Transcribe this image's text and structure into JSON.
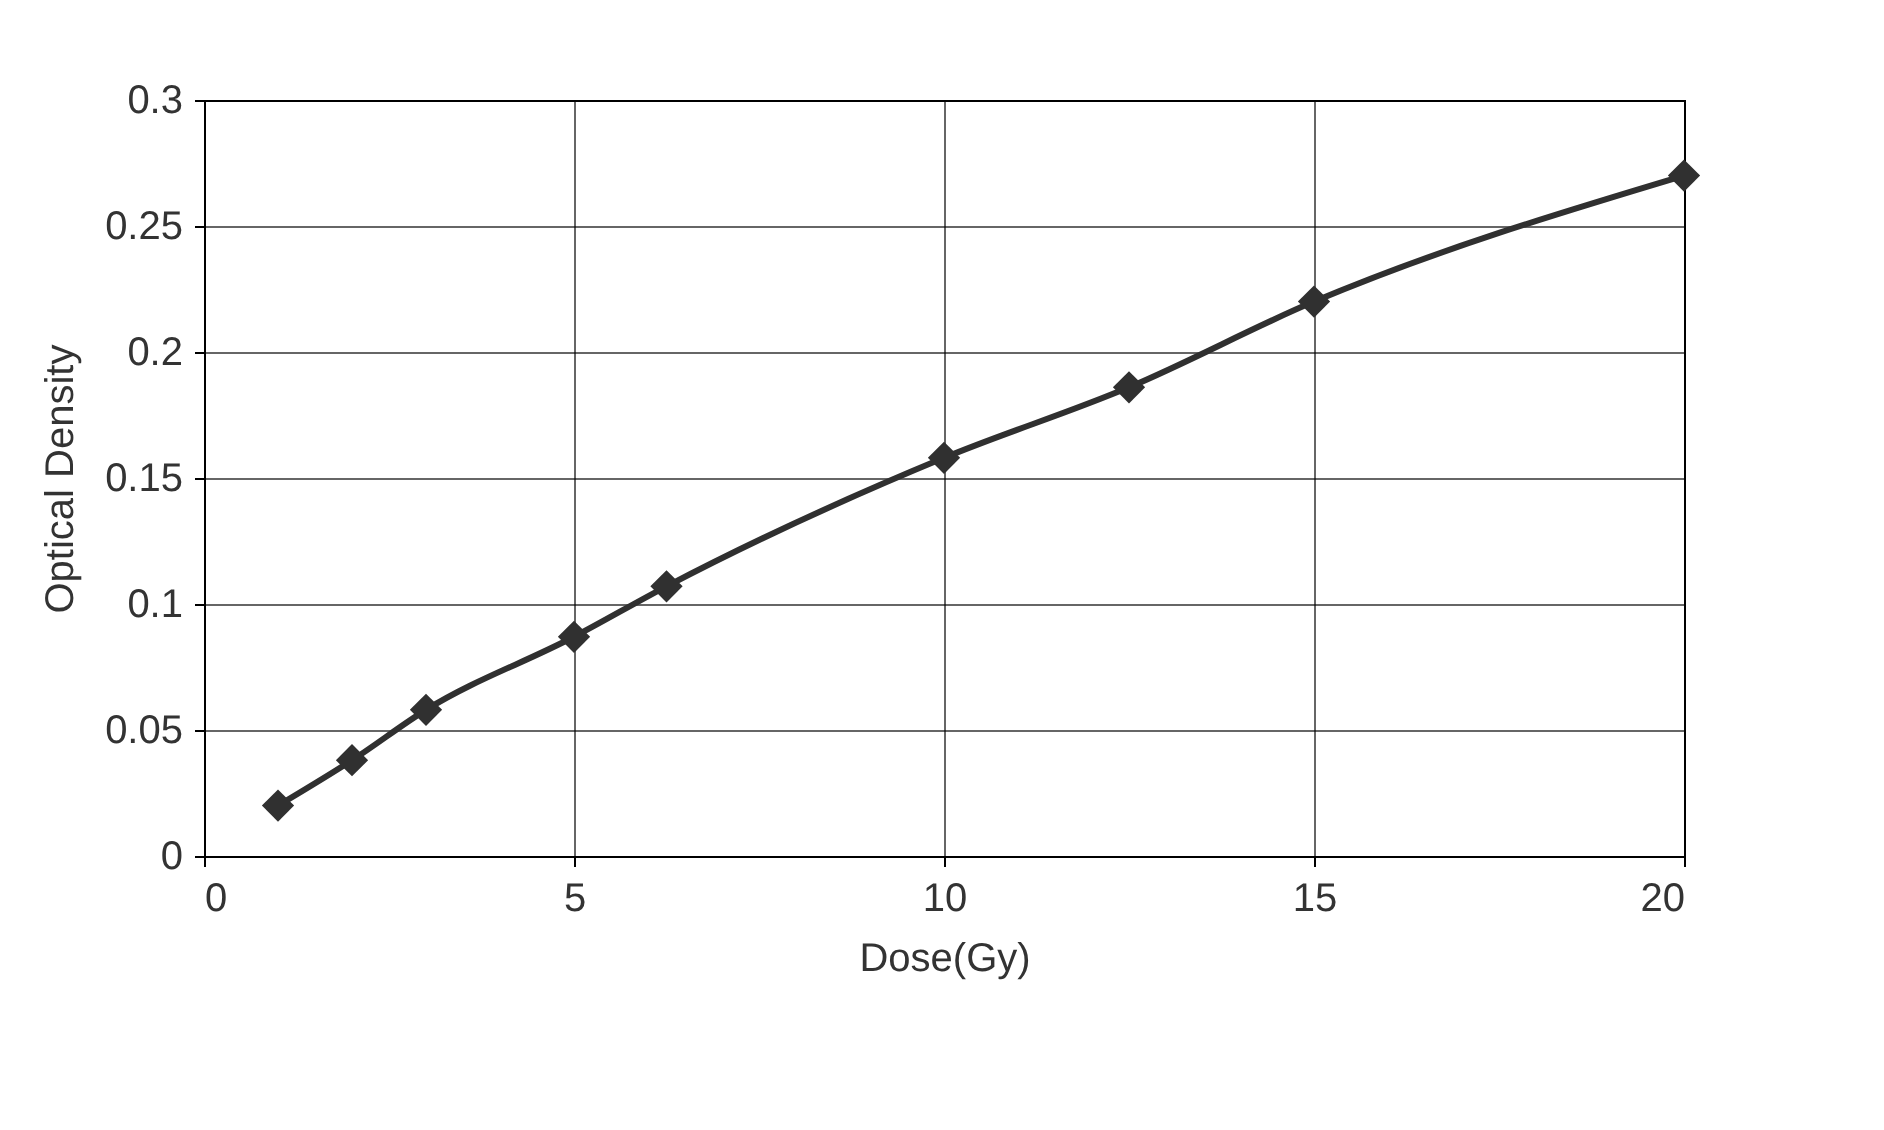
{
  "chart_data": {
    "type": "line",
    "xlabel": "Dose(Gy)",
    "ylabel": "Optical Density",
    "x": [
      1,
      2,
      3,
      5,
      6.25,
      10,
      12.5,
      15,
      20
    ],
    "series": [
      {
        "color": "#303030",
        "values": [
          0.02,
          0.038,
          0.058,
          0.087,
          0.107,
          0.158,
          0.186,
          0.22,
          0.27
        ]
      }
    ],
    "xlim": [
      0,
      20
    ],
    "xticks": [
      0,
      5,
      10,
      15,
      20
    ],
    "ylim": [
      0,
      0.3
    ],
    "yticks": [
      0,
      0.05,
      0.1,
      0.15,
      0.2,
      0.25,
      0.3
    ],
    "grid": true,
    "marker": "diamond",
    "line_style": "solid"
  }
}
